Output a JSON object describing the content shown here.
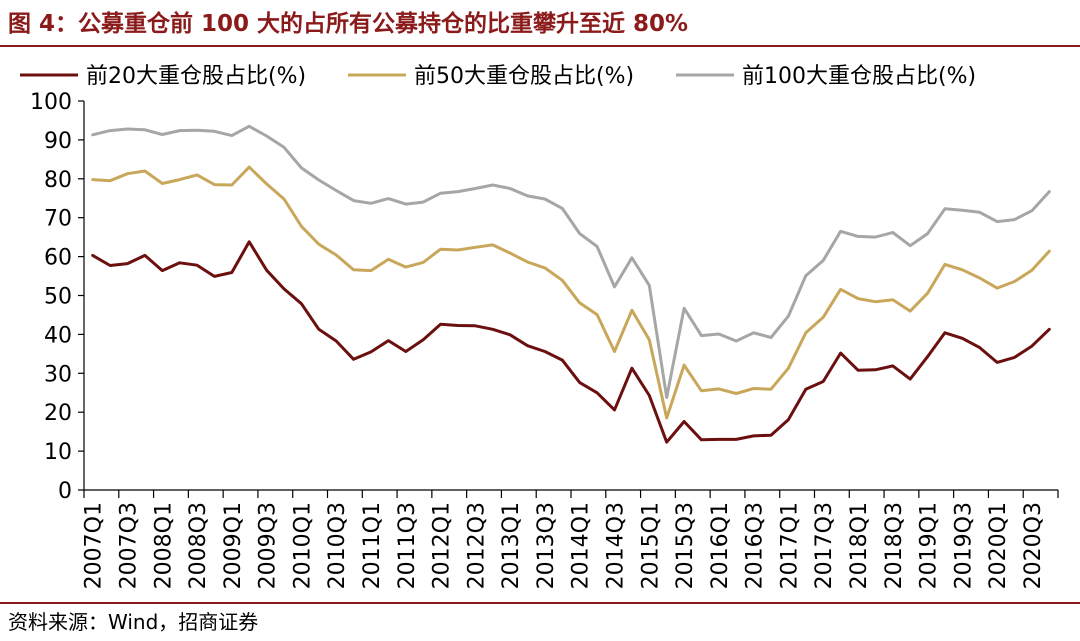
{
  "header": {
    "title": "图 4：公募重仓前 100 大的占所有公募持仓的比重攀升至近 80%"
  },
  "footer": {
    "source": "资料来源：Wind，招商证券"
  },
  "colors": {
    "title": "#8b1a1a",
    "series_top20": "#6b0f0f",
    "series_top50": "#c9a75a",
    "series_top100": "#a6a6a6"
  },
  "chart_data": {
    "type": "line",
    "title": "",
    "xlabel": "",
    "ylabel": "",
    "ylim": [
      0,
      100
    ],
    "yticks": [
      0,
      10,
      20,
      30,
      40,
      50,
      60,
      70,
      80,
      90,
      100
    ],
    "grid": false,
    "legend": "top",
    "x": [
      "2007Q1",
      "2007Q2",
      "2007Q3",
      "2007Q4",
      "2008Q1",
      "2008Q2",
      "2008Q3",
      "2008Q4",
      "2009Q1",
      "2009Q2",
      "2009Q3",
      "2009Q4",
      "2010Q1",
      "2010Q2",
      "2010Q3",
      "2010Q4",
      "2011Q1",
      "2011Q2",
      "2011Q3",
      "2011Q4",
      "2012Q1",
      "2012Q2",
      "2012Q3",
      "2012Q4",
      "2013Q1",
      "2013Q2",
      "2013Q3",
      "2013Q4",
      "2014Q1",
      "2014Q2",
      "2014Q3",
      "2014Q4",
      "2015Q1",
      "2015Q2",
      "2015Q3",
      "2015Q4",
      "2016Q1",
      "2016Q2",
      "2016Q3",
      "2016Q4",
      "2017Q1",
      "2017Q2",
      "2017Q3",
      "2017Q4",
      "2018Q1",
      "2018Q2",
      "2018Q3",
      "2018Q4",
      "2019Q1",
      "2019Q2",
      "2019Q3",
      "2019Q4",
      "2020Q1",
      "2020Q2",
      "2020Q3",
      "2020Q4"
    ],
    "tick_labels": [
      "2007Q1",
      "2007Q3",
      "2008Q1",
      "2008Q3",
      "2009Q1",
      "2009Q3",
      "2010Q1",
      "2010Q3",
      "2011Q1",
      "2011Q3",
      "2012Q1",
      "2012Q3",
      "2013Q1",
      "2013Q3",
      "2014Q1",
      "2014Q3",
      "2015Q1",
      "2015Q3",
      "2016Q1",
      "2016Q3",
      "2017Q1",
      "2017Q3",
      "2018Q1",
      "2018Q3",
      "2019Q1",
      "2019Q3",
      "2020Q1",
      "2020Q3"
    ],
    "series": [
      {
        "name": "前20大重仓股占比(%)",
        "color": "#6b0f0f",
        "values": [
          60.3,
          57.7,
          58.2,
          60.3,
          56.4,
          58.4,
          57.8,
          54.9,
          55.9,
          63.8,
          56.5,
          51.7,
          47.9,
          41.3,
          38.3,
          33.6,
          35.5,
          38.4,
          35.6,
          38.6,
          42.6,
          42.3,
          42.2,
          41.3,
          39.9,
          37.1,
          35.6,
          33.4,
          27.6,
          25.0,
          20.6,
          31.3,
          24.3,
          12.3,
          17.6,
          12.9,
          13.0,
          13.0,
          13.9,
          14.1,
          18.1,
          25.9,
          27.9,
          35.2,
          30.8,
          30.9,
          31.9,
          28.5,
          34.3,
          40.4,
          39.0,
          36.6,
          32.8,
          34.1,
          37.0,
          41.3
        ]
      },
      {
        "name": "前50大重仓股占比(%)",
        "color": "#c9a75a",
        "values": [
          79.8,
          79.5,
          81.3,
          82.0,
          78.8,
          79.8,
          81.0,
          78.5,
          78.4,
          83.0,
          78.7,
          74.8,
          67.8,
          63.2,
          60.4,
          56.6,
          56.4,
          59.3,
          57.3,
          58.5,
          61.9,
          61.7,
          62.4,
          63.0,
          60.9,
          58.6,
          57.1,
          53.9,
          48.1,
          45.1,
          35.6,
          46.2,
          38.6,
          18.5,
          32.1,
          25.5,
          26.0,
          24.8,
          26.1,
          25.9,
          31.3,
          40.4,
          44.4,
          51.6,
          49.2,
          48.4,
          48.9,
          46.0,
          50.6,
          58.0,
          56.6,
          54.5,
          51.9,
          53.6,
          56.5,
          61.4
        ]
      },
      {
        "name": "前100大重仓股占比(%)",
        "color": "#a6a6a6",
        "values": [
          91.3,
          92.4,
          92.8,
          92.6,
          91.4,
          92.4,
          92.5,
          92.2,
          91.1,
          93.5,
          91.0,
          88.1,
          82.8,
          79.7,
          77.0,
          74.4,
          73.7,
          74.9,
          73.5,
          74.0,
          76.3,
          76.7,
          77.5,
          78.4,
          77.5,
          75.6,
          74.8,
          72.4,
          65.9,
          62.6,
          52.2,
          59.7,
          52.6,
          23.8,
          46.7,
          39.7,
          40.1,
          38.3,
          40.4,
          39.2,
          44.7,
          55.1,
          59.0,
          66.5,
          65.2,
          65.0,
          66.2,
          62.8,
          65.9,
          72.3,
          71.9,
          71.4,
          69.0,
          69.5,
          71.8,
          76.7
        ]
      }
    ]
  }
}
